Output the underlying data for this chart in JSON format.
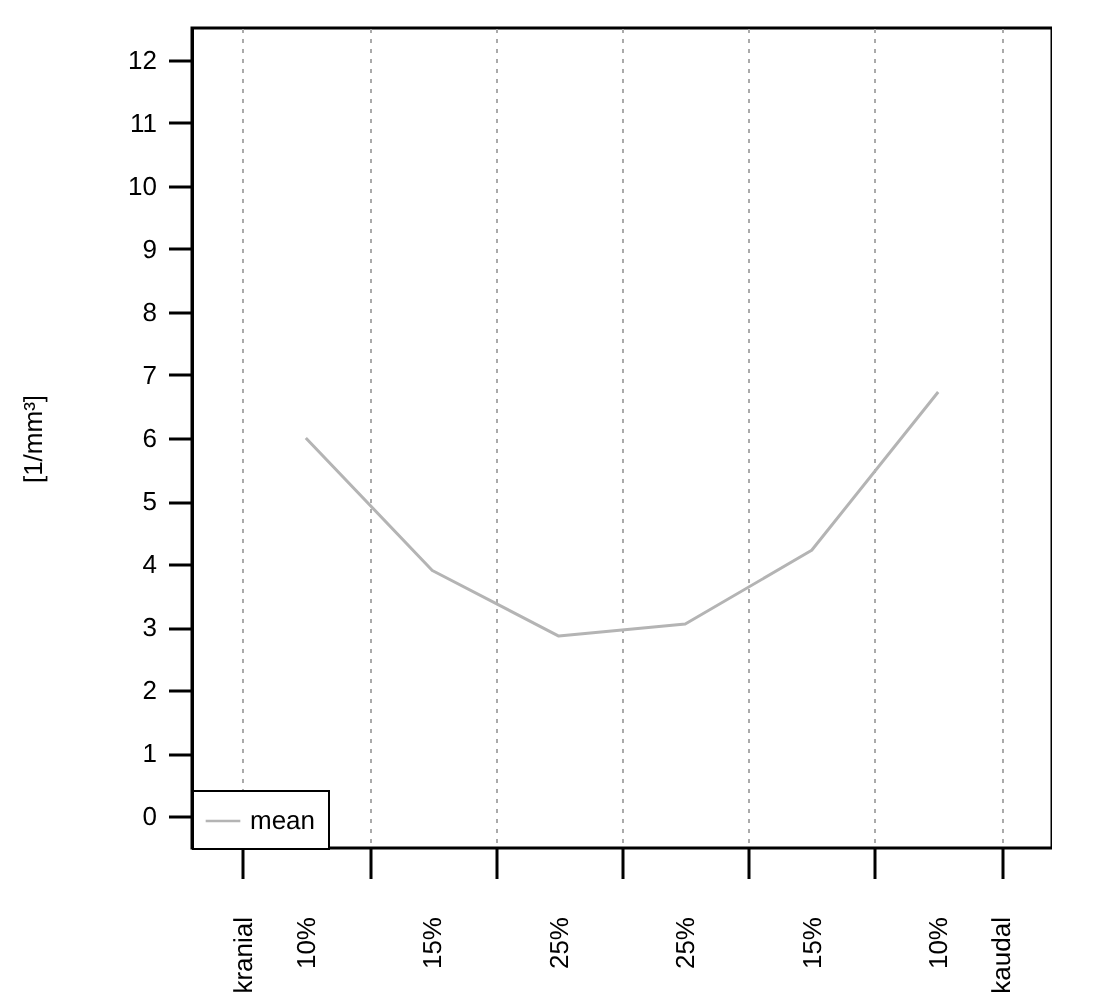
{
  "chart_data": {
    "type": "line",
    "ylabel": "[1/mm³]",
    "categories": [
      "10%",
      "15%",
      "25%",
      "25%",
      "15%",
      "10%"
    ],
    "annotations": [
      "kranial",
      "kaudal"
    ],
    "series": [
      {
        "name": "mean",
        "color": "#b4b4b4",
        "values": [
          6.0,
          3.9,
          2.86,
          3.05,
          4.22,
          6.73
        ]
      }
    ],
    "ylim": [
      -0.5,
      12.5
    ],
    "yticks": [
      0,
      1,
      2,
      3,
      4,
      5,
      6,
      7,
      8,
      9,
      10,
      11,
      12
    ],
    "grid": "x",
    "legend": "bottom left",
    "marker": "none",
    "line_style": "solid"
  }
}
